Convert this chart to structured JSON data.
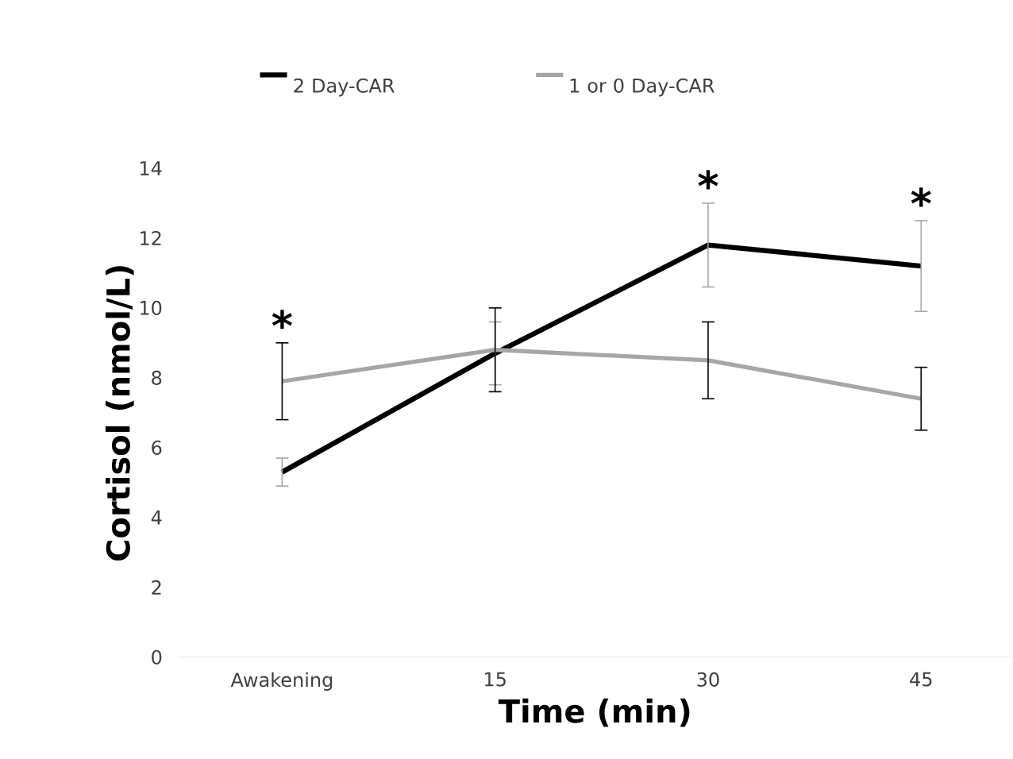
{
  "chart_data": {
    "type": "line",
    "xlabel": "Time (min)",
    "ylabel": "Cortisol (nmol/L)",
    "categories": [
      "Awakening",
      "15",
      "30",
      "45"
    ],
    "series": [
      {
        "name": "2 Day-CAR",
        "color": "#000000",
        "values": [
          5.3,
          8.7,
          11.8,
          11.2
        ],
        "errors": [
          0.4,
          0.9,
          1.2,
          1.3
        ]
      },
      {
        "name": "1 or 0 Day-CAR",
        "color": "#a6a6a6",
        "values": [
          7.9,
          8.8,
          8.5,
          7.4
        ],
        "errors": [
          1.1,
          1.2,
          1.1,
          0.9
        ]
      }
    ],
    "ylim": [
      0,
      14
    ],
    "yticks": [
      0,
      2,
      4,
      6,
      8,
      10,
      12,
      14
    ],
    "grid": false,
    "legend": "top",
    "marker": "none",
    "line_style": "solid",
    "annotations": [
      "*",
      "*",
      "*"
    ]
  }
}
